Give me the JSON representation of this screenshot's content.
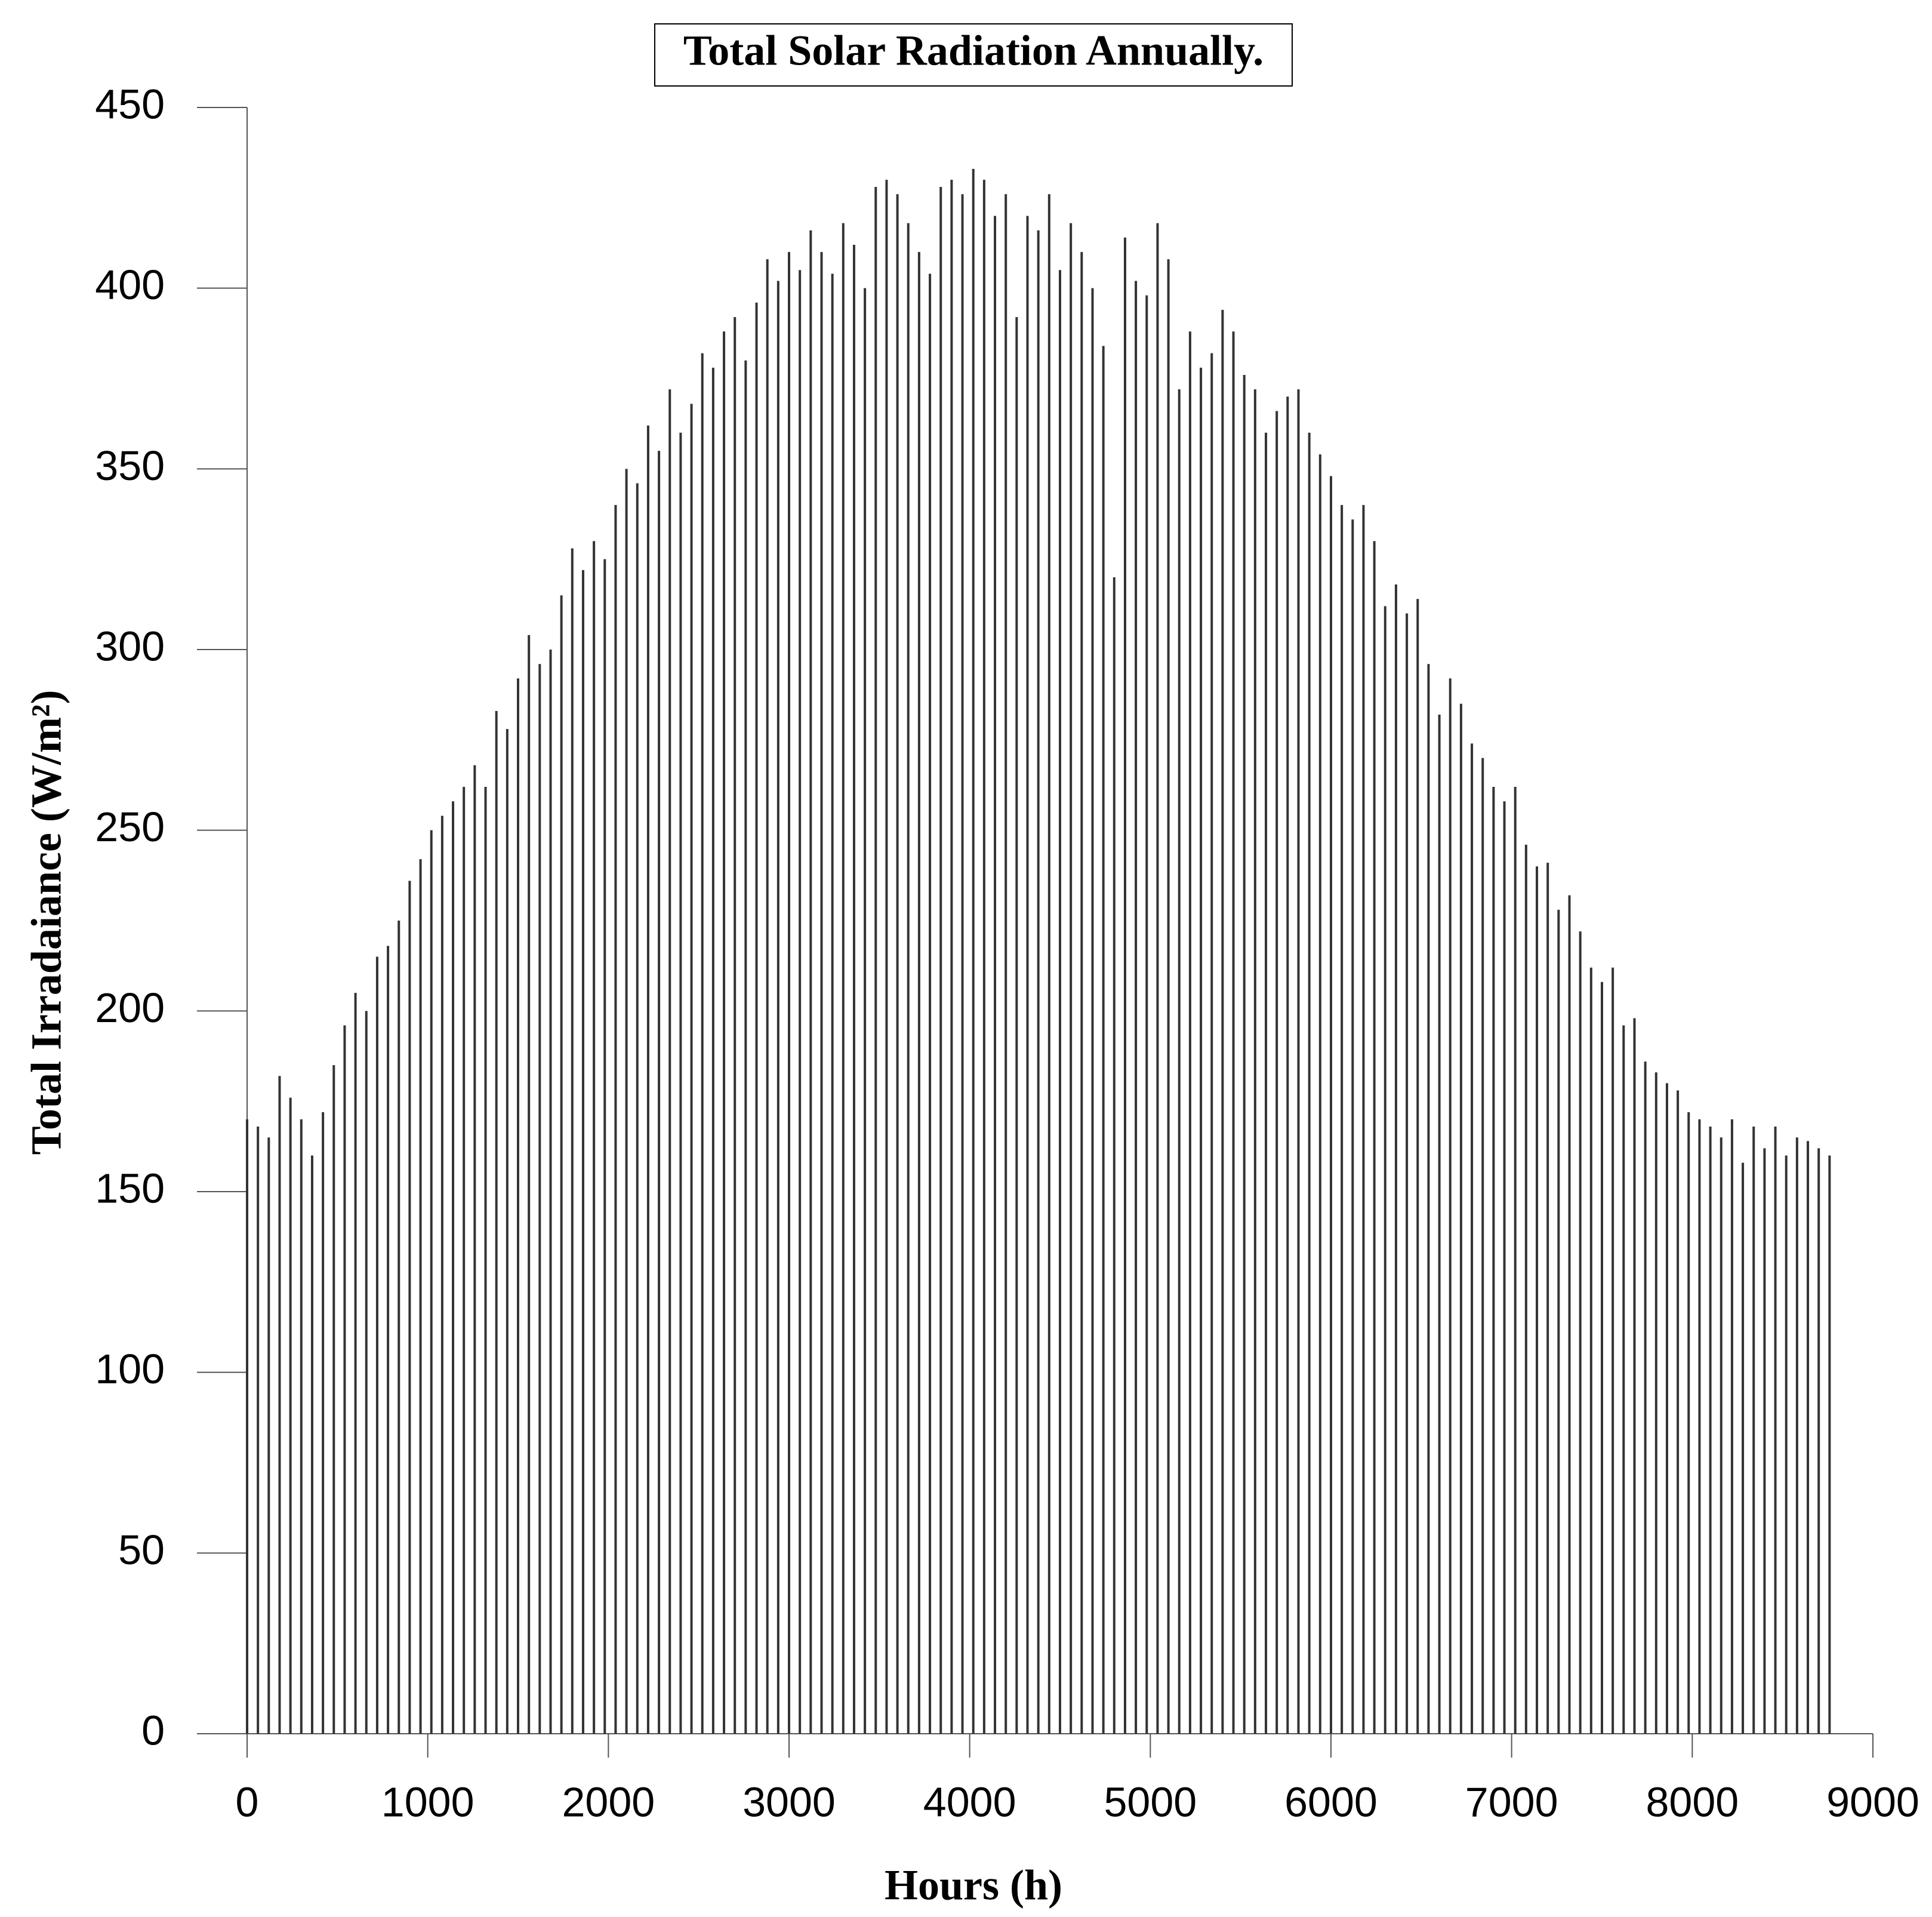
{
  "chart_data": {
    "type": "spike",
    "title": "Total Solar Radiation Annually.",
    "x_label": "Hours (h)",
    "y_label": "Total Irradaiance (W/m²)",
    "color": "#333333",
    "x": [
      0,
      60,
      120,
      180,
      240,
      300,
      360,
      420,
      480,
      540,
      600,
      660,
      720,
      780,
      840,
      900,
      960,
      1020,
      1080,
      1140,
      1200,
      1260,
      1320,
      1380,
      1440,
      1500,
      1560,
      1620,
      1680,
      1740,
      1800,
      1860,
      1920,
      1980,
      2040,
      2100,
      2160,
      2220,
      2280,
      2340,
      2400,
      2460,
      2520,
      2580,
      2640,
      2700,
      2760,
      2820,
      2880,
      2940,
      3000,
      3060,
      3120,
      3180,
      3240,
      3300,
      3360,
      3420,
      3480,
      3540,
      3600,
      3660,
      3720,
      3780,
      3840,
      3900,
      3960,
      4020,
      4080,
      4140,
      4200,
      4260,
      4320,
      4380,
      4440,
      4500,
      4560,
      4620,
      4680,
      4740,
      4800,
      4860,
      4920,
      4980,
      5040,
      5100,
      5160,
      5220,
      5280,
      5340,
      5400,
      5460,
      5520,
      5580,
      5640,
      5700,
      5760,
      5820,
      5880,
      5940,
      6000,
      6060,
      6120,
      6180,
      6240,
      6300,
      6360,
      6420,
      6480,
      6540,
      6600,
      6660,
      6720,
      6780,
      6840,
      6900,
      6960,
      7020,
      7080,
      7140,
      7200,
      7260,
      7320,
      7380,
      7440,
      7500,
      7560,
      7620,
      7680,
      7740,
      7800,
      7860,
      7920,
      7980,
      8040,
      8100,
      8160,
      8220,
      8280,
      8340,
      8400,
      8460,
      8520,
      8580,
      8640,
      8700,
      8760
    ],
    "values": [
      170,
      168,
      165,
      182,
      176,
      170,
      160,
      172,
      185,
      196,
      205,
      200,
      215,
      218,
      225,
      236,
      242,
      250,
      254,
      258,
      262,
      268,
      262,
      283,
      278,
      292,
      304,
      296,
      300,
      315,
      328,
      322,
      330,
      325,
      340,
      350,
      346,
      362,
      355,
      372,
      360,
      368,
      382,
      378,
      388,
      392,
      380,
      396,
      408,
      402,
      410,
      405,
      416,
      410,
      404,
      418,
      412,
      400,
      428,
      430,
      426,
      418,
      410,
      404,
      428,
      430,
      426,
      433,
      430,
      420,
      426,
      392,
      420,
      416,
      426,
      405,
      418,
      410,
      400,
      384,
      320,
      414,
      402,
      398,
      418,
      408,
      372,
      388,
      378,
      382,
      394,
      388,
      376,
      372,
      360,
      366,
      370,
      372,
      360,
      354,
      348,
      340,
      336,
      340,
      330,
      312,
      318,
      310,
      314,
      296,
      282,
      292,
      285,
      274,
      270,
      262,
      258,
      262,
      246,
      240,
      241,
      228,
      232,
      222,
      212,
      208,
      212,
      196,
      198,
      186,
      183,
      180,
      178,
      172,
      170,
      168,
      165,
      170,
      158,
      168,
      162,
      168,
      160,
      165,
      164,
      162,
      160
    ],
    "xlim": [
      0,
      9000
    ],
    "xticks": [
      0,
      1000,
      2000,
      3000,
      4000,
      5000,
      6000,
      7000,
      8000,
      9000
    ],
    "ylim": [
      0,
      450
    ],
    "yticks": [
      0,
      50,
      100,
      150,
      200,
      250,
      300,
      350,
      400,
      450
    ]
  }
}
